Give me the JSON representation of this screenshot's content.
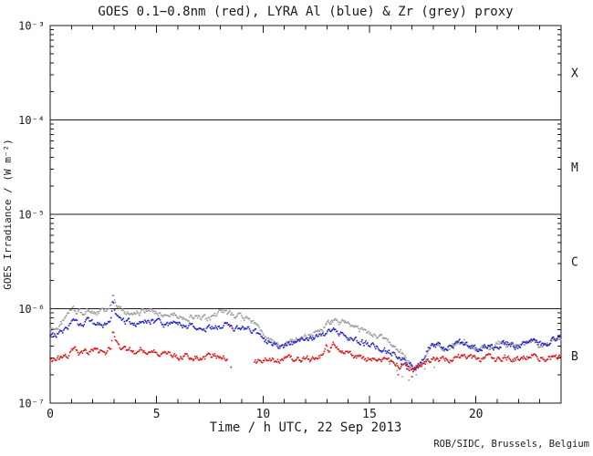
{
  "footer": {
    "credit": "ROB/SIDC, Brussels, Belgium"
  },
  "chart_data": {
    "type": "line",
    "title": "GOES 0.1−0.8nm (red), LYRA Al (blue) & Zr (grey) proxy",
    "xlabel": "Time / h UTC, 22 Sep 2013",
    "ylabel": "GOES Irradiance / (W m⁻²)",
    "x_range": [
      0,
      24
    ],
    "x_major_ticks": [
      0,
      5,
      10,
      15,
      20
    ],
    "x_minor_step": 1,
    "y_scale": "log",
    "y_range": [
      1e-07,
      0.001
    ],
    "y_ticks": [
      {
        "exp": -3,
        "label": "10⁻³"
      },
      {
        "exp": -4,
        "label": "10⁻⁴"
      },
      {
        "exp": -5,
        "label": "10⁻⁵"
      },
      {
        "exp": -6,
        "label": "10⁻⁶"
      },
      {
        "exp": -7,
        "label": "10⁻⁷"
      }
    ],
    "reference_lines": [
      0.0001,
      1e-05,
      1e-06
    ],
    "flare_classes": [
      {
        "label": "X",
        "mid_exp": -3.5
      },
      {
        "label": "M",
        "mid_exp": -4.5
      },
      {
        "label": "C",
        "mid_exp": -5.5
      },
      {
        "label": "B",
        "mid_exp": -6.5
      }
    ],
    "grid": false,
    "legend_position": "in-title",
    "colors": {
      "red": "#dd1111",
      "blue": "#2222cc",
      "grey": "#9a9a9a",
      "axis": "#1a1a1a"
    },
    "series": [
      {
        "name": "LYRA Zr proxy (grey)",
        "color_key": "grey",
        "segments": [
          [
            [
              0,
              6e-07
            ],
            [
              0.2,
              6.1e-07
            ],
            [
              0.45,
              6.6e-07
            ],
            [
              0.7,
              7.8e-07
            ],
            [
              0.95,
              9.8e-07
            ],
            [
              1.1,
              9.9e-07
            ],
            [
              1.3,
              9.2e-07
            ],
            [
              1.55,
              9e-07
            ],
            [
              1.8,
              9.7e-07
            ],
            [
              2.0,
              9.3e-07
            ],
            [
              2.2,
              8.9e-07
            ],
            [
              2.5,
              9.5e-07
            ],
            [
              2.7,
              9.7e-07
            ],
            [
              2.87,
              1.05e-06
            ],
            [
              2.95,
              1.5e-06
            ],
            [
              3.0,
              1.3e-06
            ],
            [
              3.1,
              1.05e-06
            ],
            [
              3.3,
              9.8e-07
            ],
            [
              3.5,
              9.2e-07
            ],
            [
              3.7,
              8.9e-07
            ],
            [
              3.95,
              9.4e-07
            ],
            [
              4.2,
              8.9e-07
            ],
            [
              4.5,
              9.3e-07
            ],
            [
              4.8,
              9.7e-07
            ],
            [
              5.1,
              9.1e-07
            ],
            [
              5.4,
              8.5e-07
            ],
            [
              5.7,
              8.8e-07
            ],
            [
              6.0,
              8.3e-07
            ],
            [
              6.35,
              8e-07
            ],
            [
              6.7,
              8.4e-07
            ],
            [
              7.0,
              7.9e-07
            ],
            [
              7.3,
              7.7e-07
            ],
            [
              7.6,
              8.1e-07
            ],
            [
              7.95,
              9e-07
            ],
            [
              8.15,
              9.5e-07
            ],
            [
              8.4,
              8.8e-07
            ],
            [
              8.7,
              8.3e-07
            ],
            [
              8.95,
              8.6e-07
            ],
            [
              9.2,
              7.9e-07
            ],
            [
              9.5,
              7.2e-07
            ],
            [
              9.8,
              6.4e-07
            ],
            [
              10.1,
              5.4e-07
            ],
            [
              10.4,
              4.6e-07
            ],
            [
              10.7,
              4.1e-07
            ],
            [
              11.0,
              3.9e-07
            ],
            [
              11.3,
              4.4e-07
            ],
            [
              11.6,
              4.7e-07
            ],
            [
              11.9,
              5e-07
            ],
            [
              12.3,
              5.4e-07
            ],
            [
              12.7,
              5.9e-07
            ],
            [
              13.0,
              6.6e-07
            ],
            [
              13.35,
              7.7e-07
            ],
            [
              13.6,
              7.3e-07
            ],
            [
              13.9,
              7e-07
            ],
            [
              14.2,
              6.4e-07
            ],
            [
              14.6,
              5.9e-07
            ],
            [
              15.0,
              5.5e-07
            ],
            [
              15.4,
              5.1e-07
            ],
            [
              15.8,
              4.7e-07
            ],
            [
              16.2,
              4.1e-07
            ],
            [
              16.6,
              3.3e-07
            ],
            [
              16.9,
              2.6e-07
            ],
            [
              17.15,
              2.4e-07
            ],
            [
              17.4,
              2.6e-07
            ],
            [
              17.65,
              3.1e-07
            ],
            [
              17.95,
              4.4e-07
            ],
            [
              18.15,
              4.1e-07
            ],
            [
              18.45,
              3.8e-07
            ],
            [
              18.8,
              4.1e-07
            ],
            [
              19.15,
              4.3e-07
            ],
            [
              19.45,
              4.5e-07
            ],
            [
              19.75,
              4e-07
            ],
            [
              20.1,
              3.9e-07
            ],
            [
              20.45,
              4.1e-07
            ],
            [
              20.8,
              3.8e-07
            ],
            [
              21.2,
              4.4e-07
            ],
            [
              21.55,
              4.1e-07
            ],
            [
              21.9,
              3.9e-07
            ],
            [
              22.3,
              4.3e-07
            ],
            [
              22.6,
              4.8e-07
            ],
            [
              22.95,
              4.2e-07
            ],
            [
              23.25,
              4e-07
            ],
            [
              23.55,
              4.4e-07
            ],
            [
              23.85,
              5e-07
            ],
            [
              24,
              5.2e-07
            ]
          ]
        ]
      },
      {
        "name": "LYRA Al proxy (blue)",
        "color_key": "blue",
        "segments": [
          [
            [
              0,
              5.1e-07
            ],
            [
              0.3,
              5.3e-07
            ],
            [
              0.6,
              5.9e-07
            ],
            [
              0.9,
              6.6e-07
            ],
            [
              1.1,
              7.1e-07
            ],
            [
              1.35,
              6.7e-07
            ],
            [
              1.6,
              6.9e-07
            ],
            [
              1.85,
              7.4e-07
            ],
            [
              2.1,
              6.9e-07
            ],
            [
              2.4,
              6.6e-07
            ],
            [
              2.65,
              6.9e-07
            ],
            [
              2.87,
              7.8e-07
            ],
            [
              2.95,
              1.2e-06
            ],
            [
              3.05,
              9e-07
            ],
            [
              3.15,
              8e-07
            ],
            [
              3.35,
              7.7e-07
            ],
            [
              3.6,
              7.3e-07
            ],
            [
              3.9,
              7.1e-07
            ],
            [
              4.2,
              6.9e-07
            ],
            [
              4.5,
              7.2e-07
            ],
            [
              4.8,
              7.5e-07
            ],
            [
              5.1,
              7e-07
            ],
            [
              5.5,
              6.6e-07
            ],
            [
              5.9,
              6.9e-07
            ],
            [
              6.3,
              6.5e-07
            ],
            [
              6.7,
              6.7e-07
            ],
            [
              7.1,
              6.2e-07
            ],
            [
              7.5,
              6.3e-07
            ],
            [
              7.9,
              6.6e-07
            ],
            [
              8.2,
              6.8e-07
            ],
            [
              8.5,
              6.3e-07
            ],
            [
              8.75,
              6.1e-07
            ],
            [
              8.95,
              6.5e-07
            ],
            [
              9.2,
              6.2e-07
            ],
            [
              9.5,
              5.8e-07
            ],
            [
              9.8,
              5.3e-07
            ],
            [
              10.1,
              4.7e-07
            ],
            [
              10.4,
              4.2e-07
            ],
            [
              10.7,
              4e-07
            ],
            [
              11.0,
              4.1e-07
            ],
            [
              11.3,
              4.3e-07
            ],
            [
              11.7,
              4.5e-07
            ],
            [
              12.1,
              4.7e-07
            ],
            [
              12.5,
              5e-07
            ],
            [
              12.9,
              5.2e-07
            ],
            [
              13.05,
              6.1e-07
            ],
            [
              13.2,
              5.5e-07
            ],
            [
              13.4,
              5.9e-07
            ],
            [
              13.7,
              5.3e-07
            ],
            [
              14.1,
              4.8e-07
            ],
            [
              14.5,
              4.5e-07
            ],
            [
              15.0,
              4.1e-07
            ],
            [
              15.5,
              3.8e-07
            ],
            [
              16.0,
              3.5e-07
            ],
            [
              16.4,
              3.1e-07
            ],
            [
              16.8,
              2.6e-07
            ],
            [
              17.1,
              2.4e-07
            ],
            [
              17.35,
              2.6e-07
            ],
            [
              17.6,
              3.1e-07
            ],
            [
              17.95,
              4.5e-07
            ],
            [
              18.2,
              4.1e-07
            ],
            [
              18.5,
              3.8e-07
            ],
            [
              18.9,
              4.2e-07
            ],
            [
              19.3,
              4.4e-07
            ],
            [
              19.7,
              4e-07
            ],
            [
              20.1,
              3.8e-07
            ],
            [
              20.5,
              4e-07
            ],
            [
              20.9,
              3.7e-07
            ],
            [
              21.3,
              4.5e-07
            ],
            [
              21.65,
              4.1e-07
            ],
            [
              22.0,
              3.9e-07
            ],
            [
              22.4,
              4.4e-07
            ],
            [
              22.7,
              4.9e-07
            ],
            [
              23.0,
              4.3e-07
            ],
            [
              23.3,
              4.1e-07
            ],
            [
              23.6,
              4.5e-07
            ],
            [
              23.9,
              5.1e-07
            ],
            [
              24,
              5.2e-07
            ]
          ]
        ]
      },
      {
        "name": "GOES 0.1-0.8nm (red)",
        "color_key": "red",
        "segments": [
          [
            [
              0,
              2.9e-07
            ],
            [
              0.3,
              2.85e-07
            ],
            [
              0.6,
              3e-07
            ],
            [
              0.9,
              3.3e-07
            ],
            [
              1.15,
              3.7e-07
            ],
            [
              1.4,
              3.4e-07
            ],
            [
              1.7,
              3.5e-07
            ],
            [
              2.0,
              3.6e-07
            ],
            [
              2.3,
              3.4e-07
            ],
            [
              2.6,
              3.5e-07
            ],
            [
              2.85,
              3.9e-07
            ],
            [
              2.95,
              6.2e-07
            ],
            [
              3.05,
              4.6e-07
            ],
            [
              3.2,
              3.9e-07
            ],
            [
              3.45,
              3.6e-07
            ],
            [
              3.7,
              3.7e-07
            ],
            [
              4.0,
              3.5e-07
            ],
            [
              4.3,
              3.7e-07
            ],
            [
              4.6,
              3.6e-07
            ],
            [
              4.95,
              3.4e-07
            ],
            [
              5.3,
              3.2e-07
            ],
            [
              5.7,
              3.3e-07
            ],
            [
              6.1,
              3.1e-07
            ],
            [
              6.5,
              3.2e-07
            ],
            [
              6.9,
              3e-07
            ],
            [
              7.3,
              3.1e-07
            ],
            [
              7.7,
              3.2e-07
            ],
            [
              8.0,
              3.1e-07
            ],
            [
              8.35,
              2.9e-07
            ]
          ],
          [
            [
              9.6,
              2.7e-07
            ],
            [
              9.9,
              2.8e-07
            ],
            [
              10.2,
              2.9e-07
            ],
            [
              10.5,
              2.85e-07
            ],
            [
              10.8,
              2.9e-07
            ],
            [
              11.1,
              3.1e-07
            ],
            [
              11.4,
              2.95e-07
            ],
            [
              11.8,
              2.9e-07
            ],
            [
              12.2,
              2.95e-07
            ],
            [
              12.6,
              3e-07
            ],
            [
              12.85,
              3.2e-07
            ],
            [
              12.95,
              4.1e-07
            ],
            [
              13.1,
              3.5e-07
            ],
            [
              13.35,
              4.3e-07
            ],
            [
              13.55,
              3.5e-07
            ],
            [
              13.9,
              3.3e-07
            ],
            [
              14.3,
              3.1e-07
            ],
            [
              14.7,
              3e-07
            ],
            [
              15.1,
              2.9e-07
            ],
            [
              15.5,
              2.85e-07
            ],
            [
              15.9,
              2.75e-07
            ],
            [
              16.2,
              2.6e-07
            ],
            [
              16.6,
              2.4e-07
            ],
            [
              16.9,
              2.3e-07
            ],
            [
              17.15,
              2.3e-07
            ],
            [
              17.45,
              2.5e-07
            ],
            [
              17.75,
              2.7e-07
            ],
            [
              18.0,
              3.1e-07
            ],
            [
              18.3,
              2.95e-07
            ],
            [
              18.6,
              2.9e-07
            ],
            [
              19.0,
              3e-07
            ],
            [
              19.4,
              3.1e-07
            ],
            [
              19.8,
              2.95e-07
            ],
            [
              20.2,
              2.9e-07
            ],
            [
              20.6,
              3e-07
            ],
            [
              21.0,
              2.9e-07
            ],
            [
              21.4,
              3.1e-07
            ],
            [
              21.8,
              2.95e-07
            ],
            [
              22.2,
              3e-07
            ],
            [
              22.6,
              3.2e-07
            ],
            [
              23.0,
              3e-07
            ],
            [
              23.4,
              2.95e-07
            ],
            [
              23.8,
              3.1e-07
            ],
            [
              24,
              3e-07
            ]
          ]
        ]
      }
    ],
    "scatter": [
      {
        "color_key": "grey",
        "points": [
          [
            15.95,
            2.6e-07
          ],
          [
            16.3,
            2.2e-07
          ],
          [
            16.55,
            1.9e-07
          ],
          [
            16.85,
            1.75e-07
          ],
          [
            17.2,
            2e-07
          ],
          [
            17.6,
            2.3e-07
          ],
          [
            18.05,
            2.4e-07
          ],
          [
            13.2,
            6.9e-07
          ]
        ]
      },
      {
        "color_key": "blue",
        "points": [
          [
            16.5,
            2.6e-07
          ],
          [
            16.75,
            2.3e-07
          ],
          [
            17.05,
            2.15e-07
          ]
        ]
      },
      {
        "color_key": "red",
        "points": [
          [
            8.5,
            2.4e-07
          ],
          [
            8.55,
            6.2e-07
          ],
          [
            16.35,
            2e-07
          ],
          [
            17.0,
            1.9e-07
          ]
        ]
      }
    ]
  }
}
